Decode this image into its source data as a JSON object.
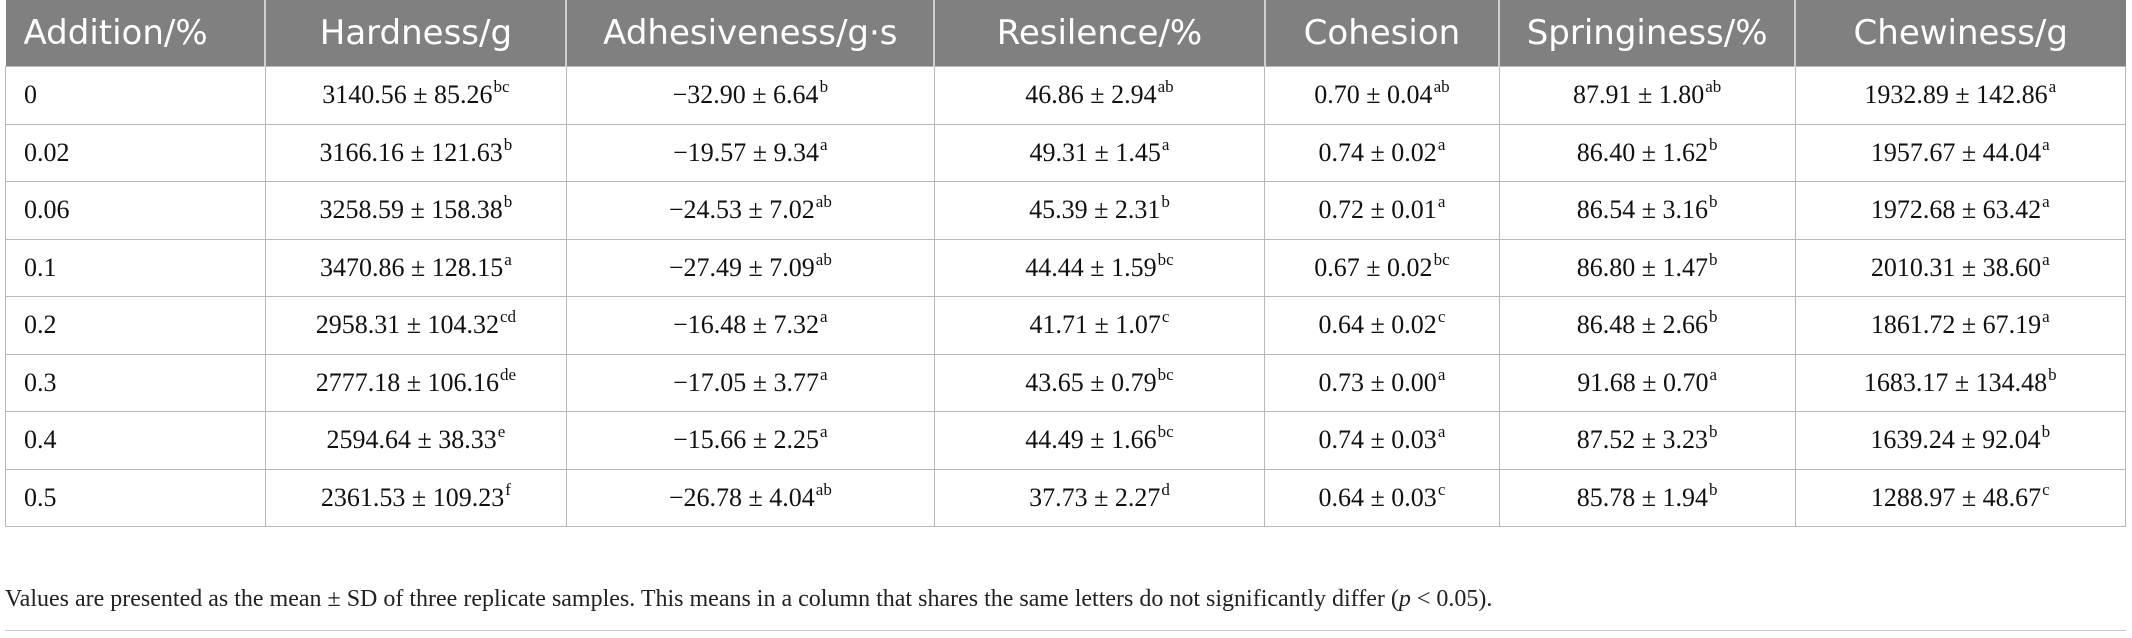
{
  "table": {
    "headers": [
      "Addition/%",
      "Hardness/g",
      "Adhesiveness/g·s",
      "Resilence/%",
      "Cohesion",
      "Springiness/%",
      "Chewiness/g"
    ],
    "rows": [
      {
        "addition": "0",
        "hardness": {
          "val": "3140.56 ± 85.26",
          "sup": "bc"
        },
        "adhesiveness": {
          "val": "−32.90 ± 6.64",
          "sup": "b"
        },
        "resilence": {
          "val": "46.86 ± 2.94",
          "sup": "ab"
        },
        "cohesion": {
          "val": "0.70 ± 0.04",
          "sup": "ab"
        },
        "springiness": {
          "val": "87.91 ± 1.80",
          "sup": "ab"
        },
        "chewiness": {
          "val": "1932.89 ± 142.86",
          "sup": "a"
        }
      },
      {
        "addition": "0.02",
        "hardness": {
          "val": "3166.16 ± 121.63",
          "sup": "b"
        },
        "adhesiveness": {
          "val": "−19.57 ± 9.34",
          "sup": "a"
        },
        "resilence": {
          "val": "49.31 ± 1.45",
          "sup": "a"
        },
        "cohesion": {
          "val": "0.74 ± 0.02",
          "sup": "a"
        },
        "springiness": {
          "val": "86.40 ± 1.62",
          "sup": "b"
        },
        "chewiness": {
          "val": "1957.67 ± 44.04",
          "sup": "a"
        }
      },
      {
        "addition": "0.06",
        "hardness": {
          "val": "3258.59 ± 158.38",
          "sup": "b"
        },
        "adhesiveness": {
          "val": "−24.53 ± 7.02",
          "sup": "ab"
        },
        "resilence": {
          "val": "45.39 ± 2.31",
          "sup": "b"
        },
        "cohesion": {
          "val": "0.72 ± 0.01",
          "sup": "a"
        },
        "springiness": {
          "val": "86.54 ± 3.16",
          "sup": "b"
        },
        "chewiness": {
          "val": "1972.68 ± 63.42",
          "sup": "a"
        }
      },
      {
        "addition": "0.1",
        "hardness": {
          "val": "3470.86 ± 128.15",
          "sup": "a"
        },
        "adhesiveness": {
          "val": "−27.49 ± 7.09",
          "sup": "ab"
        },
        "resilence": {
          "val": "44.44 ± 1.59",
          "sup": "bc"
        },
        "cohesion": {
          "val": "0.67 ± 0.02",
          "sup": "bc"
        },
        "springiness": {
          "val": "86.80 ± 1.47",
          "sup": "b"
        },
        "chewiness": {
          "val": "2010.31 ± 38.60",
          "sup": "a"
        }
      },
      {
        "addition": "0.2",
        "hardness": {
          "val": "2958.31 ± 104.32",
          "sup": "cd"
        },
        "adhesiveness": {
          "val": "−16.48 ± 7.32",
          "sup": "a"
        },
        "resilence": {
          "val": "41.71 ± 1.07",
          "sup": "c"
        },
        "cohesion": {
          "val": "0.64 ± 0.02",
          "sup": "c"
        },
        "springiness": {
          "val": "86.48 ± 2.66",
          "sup": "b"
        },
        "chewiness": {
          "val": "1861.72 ± 67.19",
          "sup": "a"
        }
      },
      {
        "addition": "0.3",
        "hardness": {
          "val": "2777.18 ± 106.16",
          "sup": "de"
        },
        "adhesiveness": {
          "val": "−17.05 ± 3.77",
          "sup": "a"
        },
        "resilence": {
          "val": "43.65 ± 0.79",
          "sup": "bc"
        },
        "cohesion": {
          "val": "0.73 ± 0.00",
          "sup": "a"
        },
        "springiness": {
          "val": "91.68 ± 0.70",
          "sup": "a"
        },
        "chewiness": {
          "val": "1683.17 ± 134.48",
          "sup": "b"
        }
      },
      {
        "addition": "0.4",
        "hardness": {
          "val": "2594.64 ± 38.33",
          "sup": "e"
        },
        "adhesiveness": {
          "val": "−15.66 ± 2.25",
          "sup": "a"
        },
        "resilence": {
          "val": "44.49 ± 1.66",
          "sup": "bc"
        },
        "cohesion": {
          "val": "0.74 ± 0.03",
          "sup": "a"
        },
        "springiness": {
          "val": "87.52 ± 3.23",
          "sup": "b"
        },
        "chewiness": {
          "val": "1639.24 ± 92.04",
          "sup": "b"
        }
      },
      {
        "addition": "0.5",
        "hardness": {
          "val": "2361.53 ± 109.23",
          "sup": "f"
        },
        "adhesiveness": {
          "val": "−26.78 ± 4.04",
          "sup": "ab"
        },
        "resilence": {
          "val": "37.73 ± 2.27",
          "sup": "d"
        },
        "cohesion": {
          "val": "0.64 ± 0.03",
          "sup": "c"
        },
        "springiness": {
          "val": "85.78 ± 1.94",
          "sup": "b"
        },
        "chewiness": {
          "val": "1288.97 ± 48.67",
          "sup": "c"
        }
      }
    ]
  },
  "footnote": {
    "text_before": "Values are presented as the mean ± SD of three replicate samples. This means in a column that shares the same letters do not significantly differ (",
    "p_symbol": "p",
    "text_after": " < 0.05)."
  },
  "colors": {
    "header_bg": "#808080",
    "header_text": "#ffffff",
    "grid_line": "#b8b8b8"
  }
}
